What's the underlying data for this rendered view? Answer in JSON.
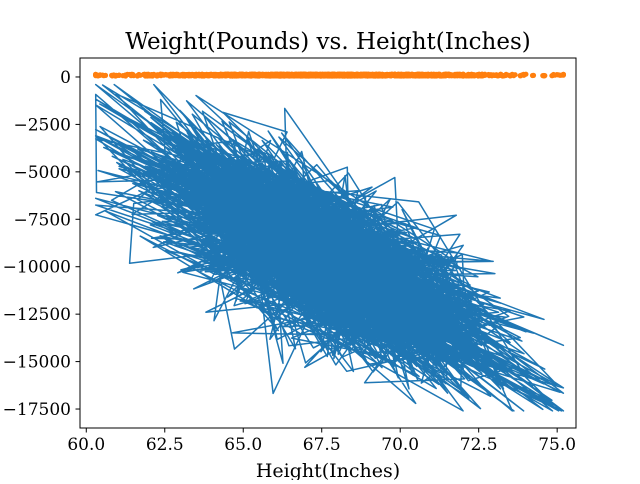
{
  "chart_data": {
    "type": "line",
    "title": "Weight(Pounds) vs. Height(Inches)",
    "xlabel": "Height(Inches)",
    "ylabel": "",
    "xlim": [
      59.8,
      75.6
    ],
    "ylim": [
      -18500,
      1000
    ],
    "x_ticks": [
      60.0,
      62.5,
      65.0,
      67.5,
      70.0,
      72.5,
      75.0
    ],
    "x_tick_labels": [
      "60.0",
      "62.5",
      "65.0",
      "67.5",
      "70.0",
      "72.5",
      "75.0"
    ],
    "y_ticks": [
      0,
      -2500,
      -5000,
      -7500,
      -10000,
      -12500,
      -15000,
      -17500
    ],
    "y_tick_labels": [
      "0",
      "−2500",
      "−5000",
      "−7500",
      "−10000",
      "−12500",
      "−15000",
      "−17500"
    ],
    "grid": false,
    "legend": "none",
    "series": [
      {
        "type": "line",
        "color": "#1f77b4",
        "x_range": [
          60.3,
          75.2
        ],
        "y_range": [
          -17600,
          -400
        ],
        "trend": "weight decreases as height increases; dense cloud centered near height 67.5 and weight -9500"
      },
      {
        "type": "scatter",
        "color": "#ff7f0e",
        "x_range": [
          60.3,
          75.2
        ],
        "y_range": [
          50,
          150
        ]
      }
    ]
  }
}
